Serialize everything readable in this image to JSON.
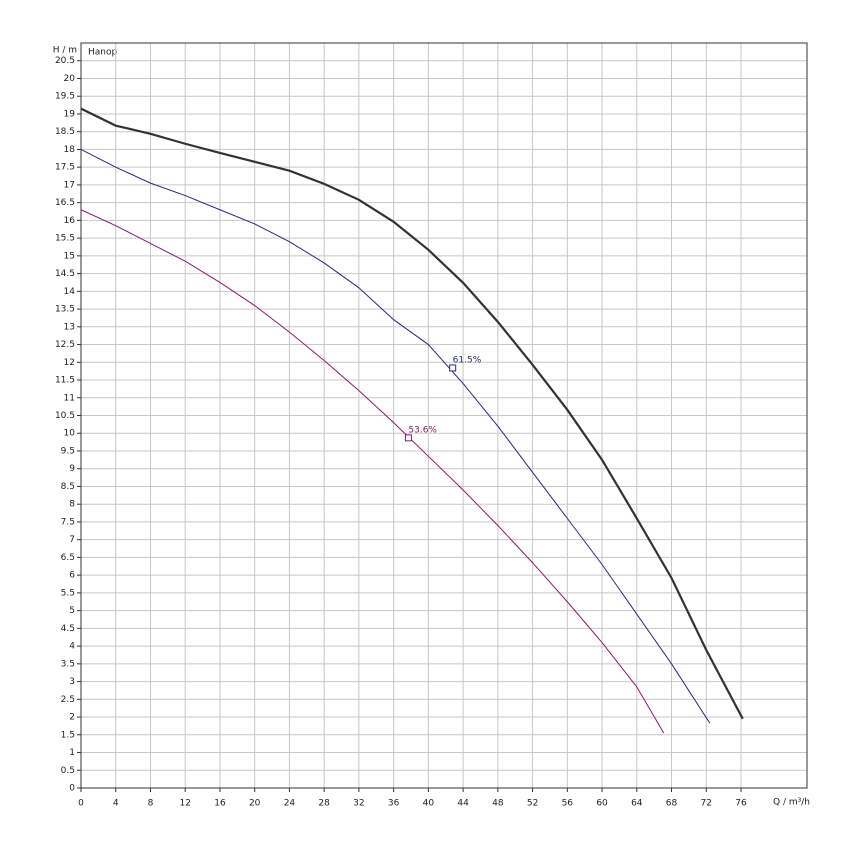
{
  "chart_data": {
    "type": "line",
    "title": "Hanop",
    "x_label": "Q / m³/h",
    "y_label": "H / m",
    "xlim": [
      0,
      83.6
    ],
    "ylim": [
      0,
      21
    ],
    "xticks": [
      0,
      4,
      8,
      12,
      16,
      20,
      24,
      28,
      32,
      36,
      40,
      44,
      48,
      52,
      56,
      60,
      64,
      68,
      72,
      76
    ],
    "yticks": [
      0,
      0.5,
      1,
      1.5,
      2,
      2.5,
      3,
      3.5,
      4,
      4.5,
      5,
      5.5,
      6,
      6.5,
      7,
      7.5,
      8,
      8.5,
      9,
      9.5,
      10,
      10.5,
      11,
      11.5,
      12,
      12.5,
      13,
      13.5,
      14,
      14.5,
      15,
      15.5,
      16,
      16.5,
      17,
      17.5,
      18,
      18.5,
      19,
      19.5,
      20,
      20.5
    ],
    "grid": true,
    "series": [
      {
        "color": "#333333",
        "width": 2.2,
        "x": [
          0,
          4,
          8,
          12,
          16,
          20,
          24,
          28,
          32,
          36,
          40,
          44,
          48,
          52,
          56,
          60,
          64,
          68,
          72,
          76.2
        ],
        "values": [
          19.15,
          18.67,
          18.44,
          18.16,
          17.9,
          17.65,
          17.4,
          17.03,
          16.58,
          15.96,
          15.17,
          14.24,
          13.14,
          11.93,
          10.66,
          9.25,
          7.6,
          5.92,
          3.89,
          1.95
        ]
      },
      {
        "color": "#2a2a7a",
        "width": 1,
        "x": [
          0,
          4,
          8,
          12,
          16,
          20,
          24,
          28,
          32,
          36,
          40,
          44,
          48,
          52,
          56,
          60,
          64,
          68,
          72.4
        ],
        "values": [
          18.0,
          17.5,
          17.05,
          16.7,
          16.3,
          15.9,
          15.4,
          14.8,
          14.1,
          13.2,
          12.5,
          11.4,
          10.2,
          8.9,
          7.6,
          6.3,
          4.9,
          3.5,
          1.83
        ]
      },
      {
        "color": "#8b1a6b",
        "width": 1,
        "x": [
          0,
          4,
          8,
          12,
          16,
          20,
          24,
          28,
          32,
          36,
          40,
          44,
          48,
          52,
          56,
          60,
          64,
          67.1
        ],
        "values": [
          16.3,
          15.85,
          15.35,
          14.85,
          14.25,
          13.6,
          12.85,
          12.05,
          11.2,
          10.3,
          9.35,
          8.4,
          7.4,
          6.35,
          5.25,
          4.1,
          2.85,
          1.55
        ]
      }
    ],
    "points": {
      "x": [
        42.8,
        37.7
      ],
      "values": [
        11.84,
        9.87
      ],
      "value_labels": [
        "61.5%",
        "53.6%"
      ],
      "colors": [
        "#2a2a7a",
        "#8b1a6b"
      ]
    }
  }
}
